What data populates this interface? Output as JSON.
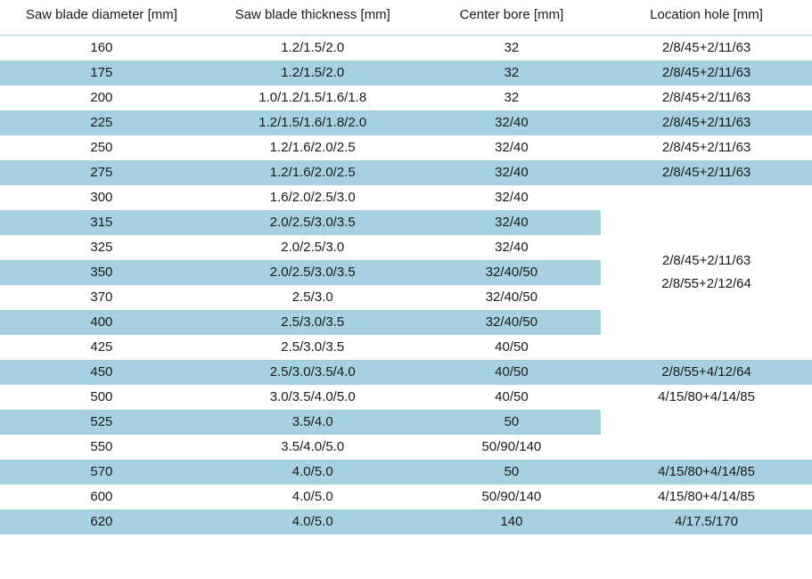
{
  "table": {
    "background_color": "#ffffff",
    "stripe_color": "#a6d1e0",
    "text_color": "#1a1a1a",
    "font_family": "Segoe UI, Arial, sans-serif",
    "font_size_pt": 11,
    "columns": [
      "Saw blade diameter [mm]",
      "Saw blade thickness [mm]",
      "Center bore [mm]",
      "Location hole [mm]"
    ],
    "rows": [
      {
        "diameter": "160",
        "thickness": "1.2/1.5/2.0",
        "bore": "32",
        "location": "2/8/45+2/11/63"
      },
      {
        "diameter": "175",
        "thickness": "1.2/1.5/2.0",
        "bore": "32",
        "location": "2/8/45+2/11/63"
      },
      {
        "diameter": "200",
        "thickness": "1.0/1.2/1.5/1.6/1.8",
        "bore": "32",
        "location": "2/8/45+2/11/63"
      },
      {
        "diameter": "225",
        "thickness": "1.2/1.5/1.6/1.8/2.0",
        "bore": "32/40",
        "location": "2/8/45+2/11/63"
      },
      {
        "diameter": "250",
        "thickness": "1.2/1.6/2.0/2.5",
        "bore": "32/40",
        "location": "2/8/45+2/11/63"
      },
      {
        "diameter": "275",
        "thickness": "1.2/1.6/2.0/2.5",
        "bore": "32/40",
        "location": "2/8/45+2/11/63"
      },
      {
        "diameter": "300",
        "thickness": "1.6/2.0/2.5/3.0",
        "bore": "32/40"
      },
      {
        "diameter": "315",
        "thickness": "2.0/2.5/3.0/3.5",
        "bore": "32/40"
      },
      {
        "diameter": "325",
        "thickness": "2.0/2.5/3.0",
        "bore": "32/40"
      },
      {
        "diameter": "350",
        "thickness": "2.0/2.5/3.0/3.5",
        "bore": "32/40/50"
      },
      {
        "diameter": "370",
        "thickness": "2.5/3.0",
        "bore": "32/40/50"
      },
      {
        "diameter": "400",
        "thickness": "2.5/3.0/3.5",
        "bore": "32/40/50"
      },
      {
        "diameter": "425",
        "thickness": "2.5/3.0/3.5",
        "bore": "40/50"
      },
      {
        "diameter": "450",
        "thickness": "2.5/3.0/3.5/4.0",
        "bore": "40/50",
        "location": "2/8/55+4/12/64"
      },
      {
        "diameter": "500",
        "thickness": "3.0/3.5/4.0/5.0",
        "bore": "40/50",
        "location": "4/15/80+4/14/85"
      },
      {
        "diameter": "525",
        "thickness": "3.5/4.0",
        "bore": "50"
      },
      {
        "diameter": "550",
        "thickness": "3.5/4.0/5.0",
        "bore": "50/90/140"
      },
      {
        "diameter": "570",
        "thickness": "4.0/5.0",
        "bore": "50",
        "location": "4/15/80+4/14/85"
      },
      {
        "diameter": "600",
        "thickness": "4.0/5.0",
        "bore": "50/90/140",
        "location": "4/15/80+4/14/85"
      },
      {
        "diameter": "620",
        "thickness": "4.0/5.0",
        "bore": "140",
        "location": "4/17.5/170"
      }
    ],
    "merged_location_groups": {
      "group_300_425": {
        "start_row_index": 6,
        "rowspan": 7,
        "lines": [
          "2/8/45+2/11/63",
          "2/8/55+2/12/64"
        ]
      },
      "group_525_550": {
        "start_row_index": 15,
        "rowspan": 2,
        "lines": [
          ""
        ]
      }
    }
  }
}
